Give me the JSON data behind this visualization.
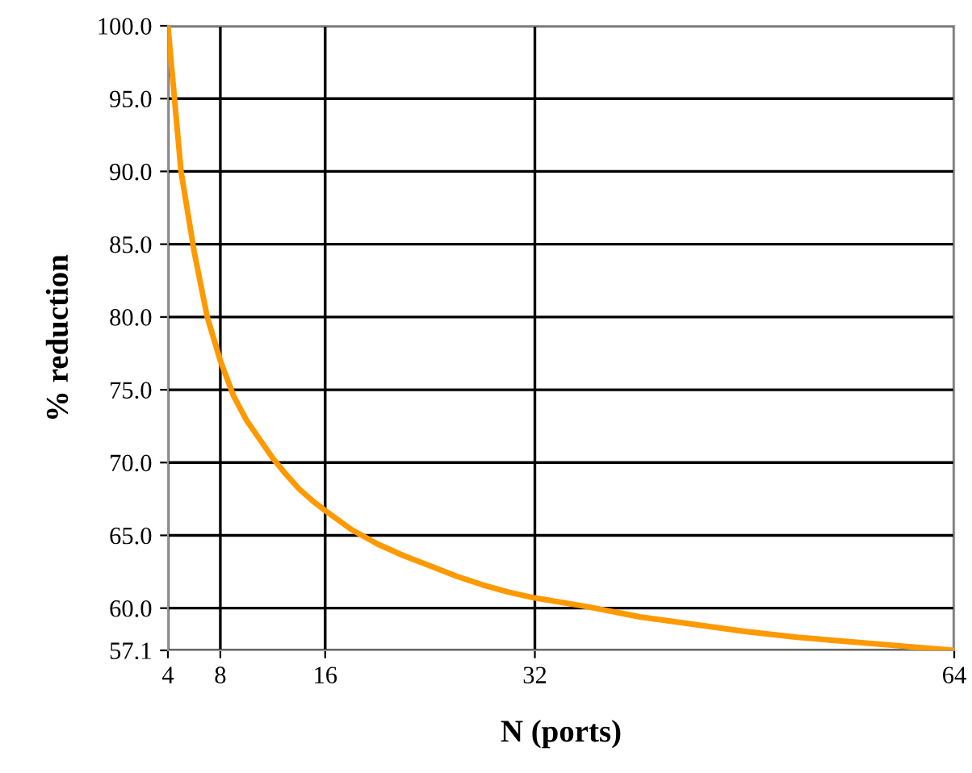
{
  "chart_data": {
    "type": "line",
    "xlabel": "N (ports)",
    "ylabel": "% reduction",
    "x": [
      4,
      5,
      6,
      7,
      8,
      9,
      10,
      11,
      12,
      13,
      14,
      15,
      16,
      18,
      20,
      22,
      24,
      26,
      28,
      30,
      32,
      36,
      40,
      44,
      48,
      52,
      56,
      60,
      64
    ],
    "series": [
      {
        "color": "#ff9900",
        "values": [
          100,
          90,
          84.5,
          80,
          77,
          74.6,
          72.9,
          71.6,
          70.3,
          69.2,
          68.2,
          67.4,
          66.7,
          65.4,
          64.4,
          63.6,
          62.9,
          62.2,
          61.6,
          61.1,
          60.7,
          60.1,
          59.4,
          58.9,
          58.4,
          58.0,
          57.7,
          57.4,
          57.1
        ]
      }
    ],
    "xlim": [
      4,
      64
    ],
    "xticks": [
      4,
      8,
      16,
      32,
      64
    ],
    "ylim": [
      57.1,
      100
    ],
    "yticks": [
      {
        "value": 57.1,
        "label": "57.1"
      },
      {
        "value": 60,
        "label": "60.0"
      },
      {
        "value": 65,
        "label": "65.0"
      },
      {
        "value": 70,
        "label": "70.0"
      },
      {
        "value": 75,
        "label": "75.0"
      },
      {
        "value": 80,
        "label": "80.0"
      },
      {
        "value": 85,
        "label": "85.0"
      },
      {
        "value": 90,
        "label": "90.0"
      },
      {
        "value": 95,
        "label": "95.0"
      },
      {
        "value": 100,
        "label": "100.0"
      }
    ],
    "grid": true,
    "marker": "none",
    "line_style": "solid"
  }
}
